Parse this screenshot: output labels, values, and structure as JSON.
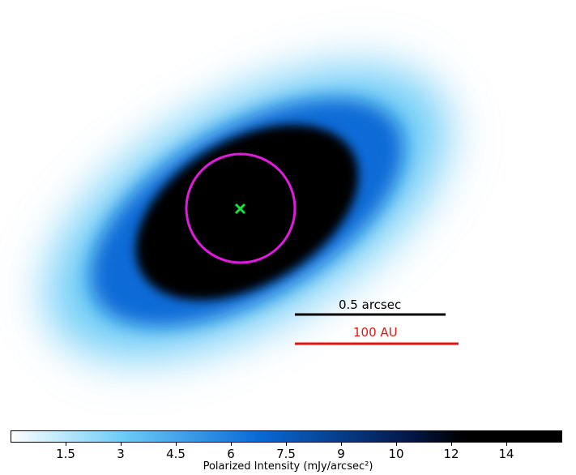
{
  "image": {
    "disk": {
      "center": "#000000",
      "mid": "#0a6ad6",
      "edge": "#6fcdf7",
      "outer": "#ffffff"
    },
    "ring_color": "#e21ae0",
    "star_marker_color": "#14e23a"
  },
  "scale_bars": {
    "arcsec": {
      "label": "0.5 arcsec",
      "color": "#000000"
    },
    "au": {
      "label": "100 AU",
      "color": "#e8120c"
    }
  },
  "colorbar": {
    "label": "Polarized Intensity (mJy/arcsec²)",
    "ticks": [
      "1.5",
      "3",
      "4.5",
      "6",
      "7.5",
      "9",
      "10",
      "12",
      "14"
    ],
    "tick_values": [
      1.5,
      3,
      4.5,
      6,
      7.5,
      9,
      10.5,
      12,
      13.5
    ],
    "range": [
      0,
      15
    ],
    "colors": [
      "#ffffff",
      "#6fcdf7",
      "#0a6ad6",
      "#04184a",
      "#000000"
    ]
  }
}
